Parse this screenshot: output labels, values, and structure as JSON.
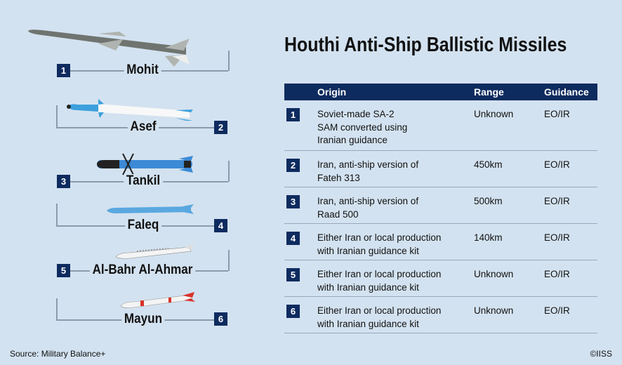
{
  "title": "Houthi Anti-Ship Ballistic Missiles",
  "table": {
    "headers": {
      "origin": "Origin",
      "range": "Range",
      "guidance": "Guidance"
    },
    "rows": [
      {
        "num": "1",
        "origin": [
          "Soviet-made SA-2",
          "SAM converted using",
          "Iranian guidance"
        ],
        "range": "Unknown",
        "guidance": "EO/IR"
      },
      {
        "num": "2",
        "origin": [
          "Iran, anti-ship version of",
          "Fateh 313"
        ],
        "range": "450km",
        "guidance": "EO/IR"
      },
      {
        "num": "3",
        "origin": [
          "Iran, anti-ship version of",
          "Raad 500"
        ],
        "range": "500km",
        "guidance": "EO/IR"
      },
      {
        "num": "4",
        "origin": [
          "Either Iran or local production",
          "with Iranian guidance kit"
        ],
        "range": "140km",
        "guidance": "EO/IR"
      },
      {
        "num": "5",
        "origin": [
          "Either Iran or local production",
          "with Iranian guidance kit"
        ],
        "range": "Unknown",
        "guidance": "EO/IR"
      },
      {
        "num": "6",
        "origin": [
          "Either Iran or local production",
          "with Iranian guidance kit"
        ],
        "range": "Unknown",
        "guidance": "EO/IR"
      }
    ]
  },
  "missiles": [
    {
      "num": "1",
      "name": "Mohit",
      "color": "#6f7470"
    },
    {
      "num": "2",
      "name": "Asef",
      "color": "#3ba0dc"
    },
    {
      "num": "3",
      "name": "Tankil",
      "color": "#3c8ad6"
    },
    {
      "num": "4",
      "name": "Faleq",
      "color": "#5aa8e0"
    },
    {
      "num": "5",
      "name": "Al-Bahr Al-Ahmar",
      "color": "#f4f4f4"
    },
    {
      "num": "6",
      "name": "Mayun",
      "color": "#f4f4f4"
    }
  ],
  "colors": {
    "background": "#d3e2f0",
    "navy": "#0e2b5f",
    "accent_red": "#d8322b"
  },
  "footer": {
    "source": "Source: Military Balance+",
    "copyright": "©IISS"
  }
}
